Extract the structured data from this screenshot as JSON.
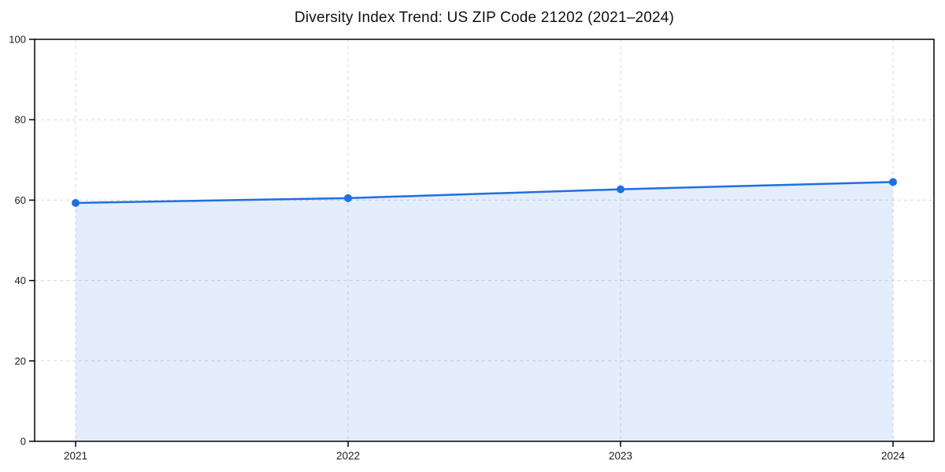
{
  "chart_data": {
    "type": "line",
    "title": "Diversity Index Trend: US ZIP Code 21202 (2021–2024)",
    "categories": [
      "2021",
      "2022",
      "2023",
      "2024"
    ],
    "series": [
      {
        "name": "Diversity Index",
        "values": [
          59.3,
          60.5,
          62.7,
          64.5
        ]
      }
    ],
    "xlabel": "",
    "ylabel": "",
    "ylim": [
      0,
      100
    ],
    "yticks": [
      0,
      20,
      40,
      60,
      80,
      100
    ],
    "grid": true,
    "grid_style": "dashed",
    "legend": false,
    "area_filled": true,
    "colors": {
      "line": "#1f6fe0",
      "marker": "#1f6fe0",
      "area_fill": "rgba(31,111,224,0.12)",
      "grid": "#d8d8d8",
      "frame": "#000000",
      "tick_text": "#1a1a1a",
      "background": "#ffffff"
    }
  }
}
